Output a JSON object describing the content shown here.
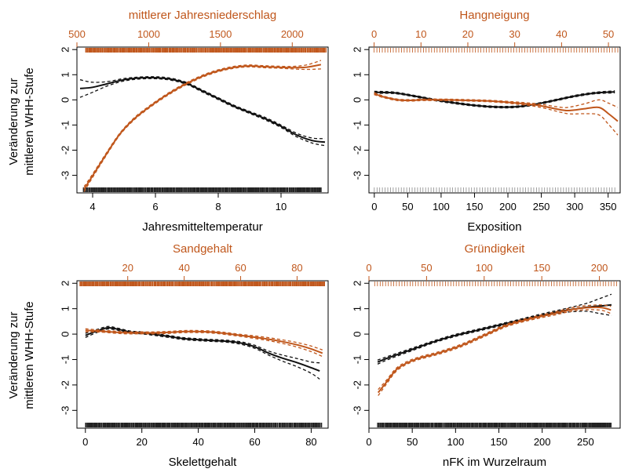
{
  "colors": {
    "black": "#111111",
    "orange": "#c0571c",
    "rug_black": "#222222",
    "rug_gray": "#8a8a8a"
  },
  "ylabel_lines": [
    "Veränderung zur",
    "mittleren WHH-Stufe"
  ],
  "chart_data": [
    {
      "type": "line",
      "xlabel": "Jahresmitteltemperatur",
      "top_xlabel": "mittlerer Jahresniederschlag",
      "ylim": [
        -3.7,
        2.1
      ],
      "yticks": [
        -3,
        -2,
        -1,
        0,
        1,
        2
      ],
      "xlim": [
        3.5,
        11.5
      ],
      "xticks": [
        4,
        6,
        8,
        10
      ],
      "top_xlim": [
        500,
        2250
      ],
      "top_xticks": [
        500,
        1000,
        1500,
        2000
      ],
      "rug": {
        "bottom": "dense",
        "bottom_range": [
          3.7,
          11.3
        ],
        "top": "dense",
        "top_range": [
          560,
          2240
        ]
      },
      "series": [
        {
          "color_key": "black",
          "axis": "bottom",
          "x": [
            3.6,
            4.0,
            4.5,
            5.0,
            5.5,
            6.0,
            6.5,
            7.0,
            7.5,
            8.0,
            8.5,
            9.0,
            9.5,
            10.0,
            10.5,
            11.0,
            11.4
          ],
          "y": [
            0.45,
            0.5,
            0.65,
            0.8,
            0.87,
            0.88,
            0.82,
            0.65,
            0.35,
            0.05,
            -0.25,
            -0.5,
            -0.75,
            -1.05,
            -1.4,
            -1.62,
            -1.68
          ],
          "band": [
            0.35,
            0.2,
            0.08,
            0.05,
            0.04,
            0.04,
            0.04,
            0.04,
            0.04,
            0.04,
            0.04,
            0.04,
            0.05,
            0.05,
            0.07,
            0.1,
            0.14
          ]
        },
        {
          "color_key": "orange",
          "axis": "top",
          "x": [
            550,
            600,
            700,
            800,
            900,
            1000,
            1100,
            1200,
            1300,
            1400,
            1500,
            1600,
            1700,
            1800,
            1900,
            2000,
            2100,
            2200
          ],
          "y": [
            -3.55,
            -3.1,
            -2.2,
            -1.35,
            -0.75,
            -0.3,
            0.1,
            0.45,
            0.75,
            1.0,
            1.18,
            1.3,
            1.35,
            1.32,
            1.3,
            1.28,
            1.3,
            1.4
          ],
          "band": [
            0.1,
            0.07,
            0.05,
            0.04,
            0.04,
            0.04,
            0.04,
            0.04,
            0.04,
            0.04,
            0.04,
            0.04,
            0.04,
            0.04,
            0.04,
            0.05,
            0.09,
            0.17
          ]
        }
      ]
    },
    {
      "type": "line",
      "xlabel": "Exposition",
      "top_xlabel": "Hangneigung",
      "ylim": [
        -3.7,
        2.1
      ],
      "yticks": [
        -3,
        -2,
        -1,
        0,
        1,
        2
      ],
      "xlim": [
        -8,
        368
      ],
      "xticks": [
        0,
        50,
        100,
        150,
        200,
        250,
        300,
        350
      ],
      "top_xlim": [
        -1.1,
        52.5
      ],
      "top_xticks": [
        0,
        10,
        20,
        30,
        40,
        50
      ],
      "rug": {
        "bottom": "sparse",
        "bottom_range": [
          0,
          360
        ],
        "top": "sparse",
        "top_range": [
          0,
          52
        ]
      },
      "series": [
        {
          "color_key": "black",
          "axis": "bottom",
          "x": [
            0,
            30,
            60,
            90,
            120,
            150,
            180,
            210,
            240,
            270,
            300,
            330,
            360
          ],
          "y": [
            0.3,
            0.28,
            0.15,
            0.0,
            -0.12,
            -0.22,
            -0.28,
            -0.28,
            -0.18,
            -0.02,
            0.15,
            0.27,
            0.32
          ],
          "band": [
            0.04,
            0.03,
            0.03,
            0.03,
            0.03,
            0.03,
            0.03,
            0.03,
            0.03,
            0.03,
            0.03,
            0.03,
            0.04
          ]
        },
        {
          "color_key": "orange",
          "axis": "top",
          "x": [
            0,
            2,
            5,
            8,
            10,
            15,
            20,
            25,
            30,
            35,
            40,
            42,
            45,
            48,
            50,
            52
          ],
          "y": [
            0.25,
            0.12,
            0.0,
            -0.02,
            0.0,
            0.0,
            -0.02,
            -0.05,
            -0.12,
            -0.22,
            -0.4,
            -0.42,
            -0.35,
            -0.3,
            -0.55,
            -0.85
          ],
          "band": [
            0.04,
            0.03,
            0.03,
            0.03,
            0.03,
            0.03,
            0.03,
            0.03,
            0.04,
            0.06,
            0.1,
            0.14,
            0.2,
            0.3,
            0.42,
            0.55
          ]
        }
      ]
    },
    {
      "type": "line",
      "xlabel": "Skelettgehalt",
      "top_xlabel": "Sandgehalt",
      "ylim": [
        -3.7,
        2.1
      ],
      "yticks": [
        -3,
        -2,
        -1,
        0,
        1,
        2
      ],
      "xlim": [
        -3,
        86
      ],
      "xticks": [
        0,
        20,
        40,
        60,
        80
      ],
      "top_xlim": [
        2,
        91
      ],
      "top_xticks": [
        20,
        40,
        60,
        80
      ],
      "rug": {
        "bottom": "dense",
        "bottom_range": [
          0,
          84
        ],
        "top": "dense",
        "top_range": [
          3,
          90
        ]
      },
      "series": [
        {
          "color_key": "black",
          "axis": "bottom",
          "x": [
            0,
            4,
            8,
            12,
            16,
            20,
            25,
            30,
            35,
            40,
            45,
            50,
            55,
            60,
            65,
            70,
            75,
            80,
            83
          ],
          "y": [
            -0.05,
            0.12,
            0.25,
            0.18,
            0.08,
            0.05,
            -0.02,
            -0.1,
            -0.18,
            -0.22,
            -0.25,
            -0.28,
            -0.35,
            -0.5,
            -0.75,
            -0.95,
            -1.12,
            -1.32,
            -1.45
          ],
          "band": [
            0.08,
            0.06,
            0.05,
            0.04,
            0.04,
            0.04,
            0.04,
            0.04,
            0.04,
            0.04,
            0.04,
            0.04,
            0.05,
            0.06,
            0.08,
            0.12,
            0.16,
            0.22,
            0.32
          ]
        },
        {
          "color_key": "orange",
          "axis": "top",
          "x": [
            5,
            10,
            15,
            20,
            25,
            30,
            35,
            40,
            45,
            50,
            55,
            60,
            65,
            70,
            75,
            80,
            85,
            89
          ],
          "y": [
            0.15,
            0.12,
            0.08,
            0.05,
            0.05,
            0.05,
            0.07,
            0.1,
            0.1,
            0.08,
            0.02,
            -0.05,
            -0.12,
            -0.2,
            -0.3,
            -0.42,
            -0.58,
            -0.75
          ],
          "band": [
            0.06,
            0.04,
            0.04,
            0.04,
            0.04,
            0.04,
            0.04,
            0.04,
            0.04,
            0.04,
            0.04,
            0.04,
            0.05,
            0.06,
            0.07,
            0.09,
            0.11,
            0.13
          ]
        }
      ]
    },
    {
      "type": "line",
      "xlabel": "nFK im Wurzelraum",
      "top_xlabel": "Gründigkeit",
      "ylim": [
        -3.7,
        2.1
      ],
      "yticks": [
        -3,
        -2,
        -1,
        0,
        1,
        2
      ],
      "xlim": [
        0,
        290
      ],
      "xticks": [
        0,
        50,
        100,
        150,
        200,
        250
      ],
      "top_xlim": [
        0,
        218
      ],
      "top_xticks": [
        0,
        50,
        100,
        150,
        200
      ],
      "rug": {
        "bottom": "dense",
        "bottom_range": [
          10,
          280
        ],
        "top": "sparse",
        "top_range": [
          5,
          215
        ]
      },
      "series": [
        {
          "color_key": "black",
          "axis": "bottom",
          "x": [
            10,
            25,
            50,
            75,
            100,
            125,
            150,
            175,
            200,
            225,
            250,
            265,
            280
          ],
          "y": [
            -1.1,
            -0.9,
            -0.6,
            -0.3,
            -0.05,
            0.15,
            0.35,
            0.55,
            0.75,
            0.92,
            1.05,
            1.1,
            1.15
          ],
          "band": [
            0.08,
            0.06,
            0.05,
            0.04,
            0.04,
            0.04,
            0.04,
            0.04,
            0.05,
            0.07,
            0.15,
            0.28,
            0.42
          ]
        },
        {
          "color_key": "orange",
          "axis": "top",
          "x": [
            8,
            15,
            25,
            40,
            60,
            80,
            100,
            120,
            140,
            160,
            180,
            200,
            210
          ],
          "y": [
            -2.3,
            -1.9,
            -1.35,
            -1.0,
            -0.75,
            -0.45,
            -0.05,
            0.35,
            0.6,
            0.8,
            1.0,
            1.05,
            0.95
          ],
          "band": [
            0.12,
            0.08,
            0.06,
            0.05,
            0.05,
            0.05,
            0.05,
            0.05,
            0.05,
            0.06,
            0.07,
            0.1,
            0.14
          ]
        }
      ]
    }
  ]
}
